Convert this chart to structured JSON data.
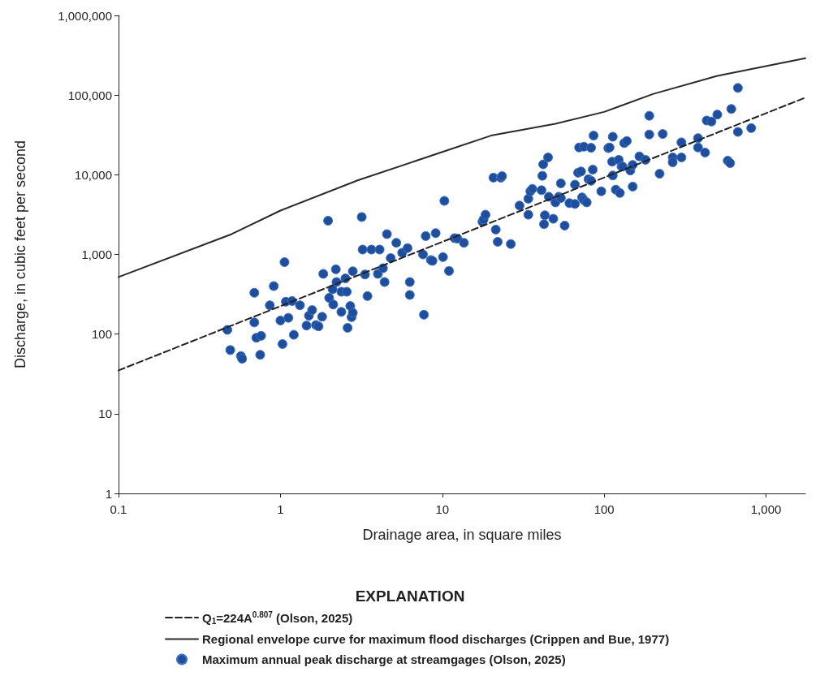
{
  "chart_data": {
    "type": "scatter",
    "xlabel": "Drainage area, in square miles",
    "ylabel": "Discharge, in cubic feet per second",
    "legend_title": "EXPLANATION",
    "log": "xy",
    "grid": false,
    "legend": "bottom",
    "xlim": [
      0.1,
      1750
    ],
    "xticks": [
      0.1,
      1,
      10,
      100,
      {
        "value": 1000,
        "label": "1,000"
      }
    ],
    "ylim": [
      1,
      1000000
    ],
    "yticks": [
      1,
      10,
      100,
      {
        "value": 1000,
        "label": "1,000"
      },
      {
        "value": 10000,
        "label": "10,000"
      },
      {
        "value": 100000,
        "label": "100,000"
      },
      {
        "value": 1000000,
        "label": "1,000,000"
      }
    ],
    "series": [
      {
        "name": "Q$_{1}$=224A$^{0.807}$ (Olson, 2025)",
        "type": "line",
        "line_style": "dashed",
        "marker": "none",
        "color": "#222222",
        "x": [
          0.1,
          1,
          1750
        ],
        "values": [
          35,
          224,
          93000
        ]
      },
      {
        "name": "Regional envelope curve for maximum flood discharges (Crippen and Bue, 1977)",
        "type": "line",
        "line_style": "solid",
        "marker": "none",
        "color": "#2b2b2b",
        "x": [
          0.1,
          0.5,
          1,
          3,
          10,
          20,
          50,
          100,
          200,
          500,
          1750
        ],
        "values": [
          520,
          1800,
          3550,
          8500,
          19300,
          31000,
          43700,
          61500,
          103000,
          174000,
          290000
        ]
      },
      {
        "name": "Maximum annual peak discharge at streamgages (Olson, 2025)",
        "marker": "circle",
        "color": "#1f4e9c",
        "x": [
          0.47,
          0.49,
          0.57,
          0.58,
          0.69,
          0.69,
          0.71,
          0.75,
          0.76,
          0.86,
          0.91,
          1.0,
          1.03,
          1.06,
          1.08,
          1.12,
          1.18,
          1.21,
          1.32,
          1.45,
          1.5,
          1.57,
          1.66,
          1.72,
          1.81,
          1.84,
          1.97,
          2.0,
          2.1,
          2.12,
          2.2,
          2.22,
          2.38,
          2.38,
          2.52,
          2.57,
          2.6,
          2.7,
          2.75,
          2.8,
          2.8,
          3.18,
          3.22,
          3.33,
          3.45,
          3.65,
          4.0,
          4.1,
          4.3,
          4.4,
          4.55,
          4.8,
          5.2,
          5.65,
          6.1,
          6.3,
          6.3,
          7.6,
          7.7,
          7.9,
          8.5,
          8.7,
          9.1,
          10.1,
          10.3,
          11.0,
          11.9,
          12.4,
          13.6,
          17.7,
          18.0,
          18.5,
          20.7,
          21.4,
          22,
          23,
          23.4,
          26.5,
          30,
          34,
          34,
          35,
          36,
          41,
          41.5,
          42,
          42.5,
          43,
          45,
          45.5,
          48.5,
          50,
          52.5,
          54,
          54,
          57,
          61,
          66,
          66,
          69,
          70,
          72,
          73,
          75,
          75,
          78,
          80,
          83,
          83,
          85,
          86,
          96,
          106,
          108,
          112,
          113,
          113,
          118,
          123,
          125,
          128,
          130,
          133,
          138,
          145,
          150,
          150,
          165,
          180,
          190,
          190,
          220,
          230,
          265,
          265,
          300,
          300,
          380,
          380,
          420,
          430,
          460,
          500,
          580,
          600,
          610,
          670,
          670,
          810
        ],
        "values": [
          113,
          63,
          53,
          49,
          330,
          140,
          90,
          55,
          95,
          230,
          400,
          148,
          75,
          800,
          255,
          160,
          260,
          98,
          230,
          128,
          170,
          200,
          130,
          125,
          165,
          570,
          2650,
          285,
          365,
          235,
          650,
          450,
          190,
          340,
          500,
          340,
          120,
          225,
          163,
          615,
          185,
          2950,
          1150,
          560,
          300,
          1150,
          570,
          1150,
          670,
          450,
          1800,
          900,
          1400,
          1050,
          1200,
          450,
          310,
          1000,
          175,
          1700,
          850,
          830,
          1850,
          925,
          4700,
          620,
          1600,
          1580,
          1400,
          2570,
          2750,
          3150,
          9200,
          2050,
          1440,
          9200,
          9600,
          1350,
          4100,
          5000,
          3150,
          6200,
          6650,
          6400,
          9700,
          13500,
          2400,
          3100,
          16500,
          5300,
          2800,
          4500,
          5300,
          7800,
          5100,
          2300,
          4400,
          4300,
          7500,
          10600,
          22000,
          11000,
          5200,
          22500,
          4800,
          4500,
          8800,
          21800,
          8400,
          11600,
          31000,
          6200,
          21600,
          22000,
          14600,
          9800,
          30000,
          6500,
          15400,
          5900,
          12700,
          12700,
          25000,
          26500,
          11300,
          13300,
          7100,
          17000,
          15400,
          32000,
          55000,
          10300,
          32500,
          16500,
          14300,
          25500,
          16500,
          28800,
          22000,
          19000,
          48000,
          46500,
          57000,
          15000,
          14000,
          67000,
          123000,
          34500,
          38500
        ]
      }
    ]
  }
}
